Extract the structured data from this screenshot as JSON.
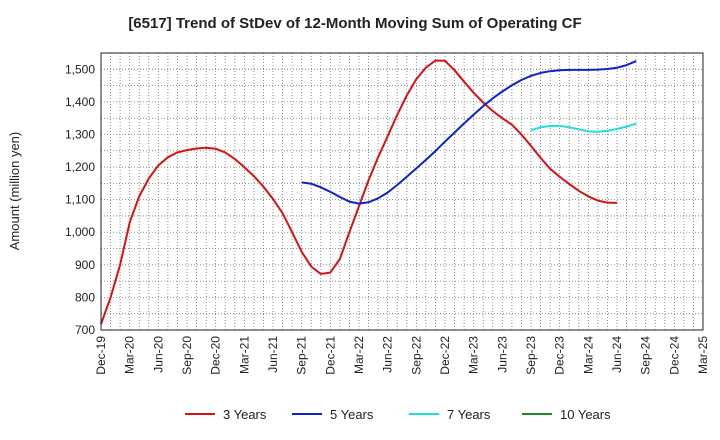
{
  "chart_data": {
    "type": "line",
    "title": "[6517]  Trend of StDev of 12-Month Moving Sum of Operating CF",
    "ylabel": "Amount (million yen)",
    "xlabel": "",
    "ylim": [
      700,
      1550
    ],
    "yticks": [
      700,
      800,
      900,
      "1,000",
      "1,100",
      "1,200",
      "1,300",
      "1,400",
      "1,500"
    ],
    "ytick_values": [
      700,
      800,
      900,
      1000,
      1100,
      1200,
      1300,
      1400,
      1500
    ],
    "x_categories": [
      "Dec-19",
      "Mar-20",
      "Jun-20",
      "Sep-20",
      "Dec-20",
      "Mar-21",
      "Jun-21",
      "Sep-21",
      "Dec-21",
      "Mar-22",
      "Jun-22",
      "Sep-22",
      "Dec-22",
      "Mar-23",
      "Jun-23",
      "Sep-23",
      "Dec-23",
      "Mar-24",
      "Jun-24",
      "Sep-24",
      "Dec-24",
      "Mar-25"
    ],
    "grid": true,
    "legend_position": "bottom",
    "series": [
      {
        "name": "3 Years",
        "color": "#dd1111",
        "start_index": 0,
        "values": [
          718,
          800,
          900,
          1030,
          1110,
          1165,
          1205,
          1230,
          1245,
          1252,
          1257,
          1259,
          1256,
          1245,
          1225,
          1200,
          1172,
          1140,
          1102,
          1058,
          1000,
          940,
          895,
          872,
          876,
          918,
          1000,
          1080,
          1160,
          1230,
          1295,
          1360,
          1420,
          1470,
          1505,
          1527,
          1526,
          1497,
          1462,
          1428,
          1398,
          1372,
          1350,
          1330,
          1300,
          1265,
          1228,
          1195,
          1170,
          1148,
          1127,
          1110,
          1097,
          1091,
          1090
        ]
      },
      {
        "name": "5 Years",
        "color": "#1122cc",
        "start_index": 21,
        "values": [
          1153,
          1149,
          1138,
          1124,
          1108,
          1094,
          1088,
          1092,
          1104,
          1122,
          1145,
          1170,
          1196,
          1222,
          1249,
          1278,
          1306,
          1334,
          1361,
          1387,
          1411,
          1432,
          1451,
          1467,
          1480,
          1489,
          1494,
          1497,
          1498,
          1498,
          1498,
          1499,
          1501,
          1505,
          1513,
          1525
        ]
      },
      {
        "name": "7 Years",
        "color": "#22dddd",
        "start_index": 45,
        "values": [
          1313,
          1322,
          1326,
          1327,
          1322,
          1316,
          1310,
          1308,
          1311,
          1317,
          1324,
          1333
        ]
      },
      {
        "name": "10 Years",
        "color": "#228822",
        "start_index": 0,
        "values": []
      }
    ]
  }
}
